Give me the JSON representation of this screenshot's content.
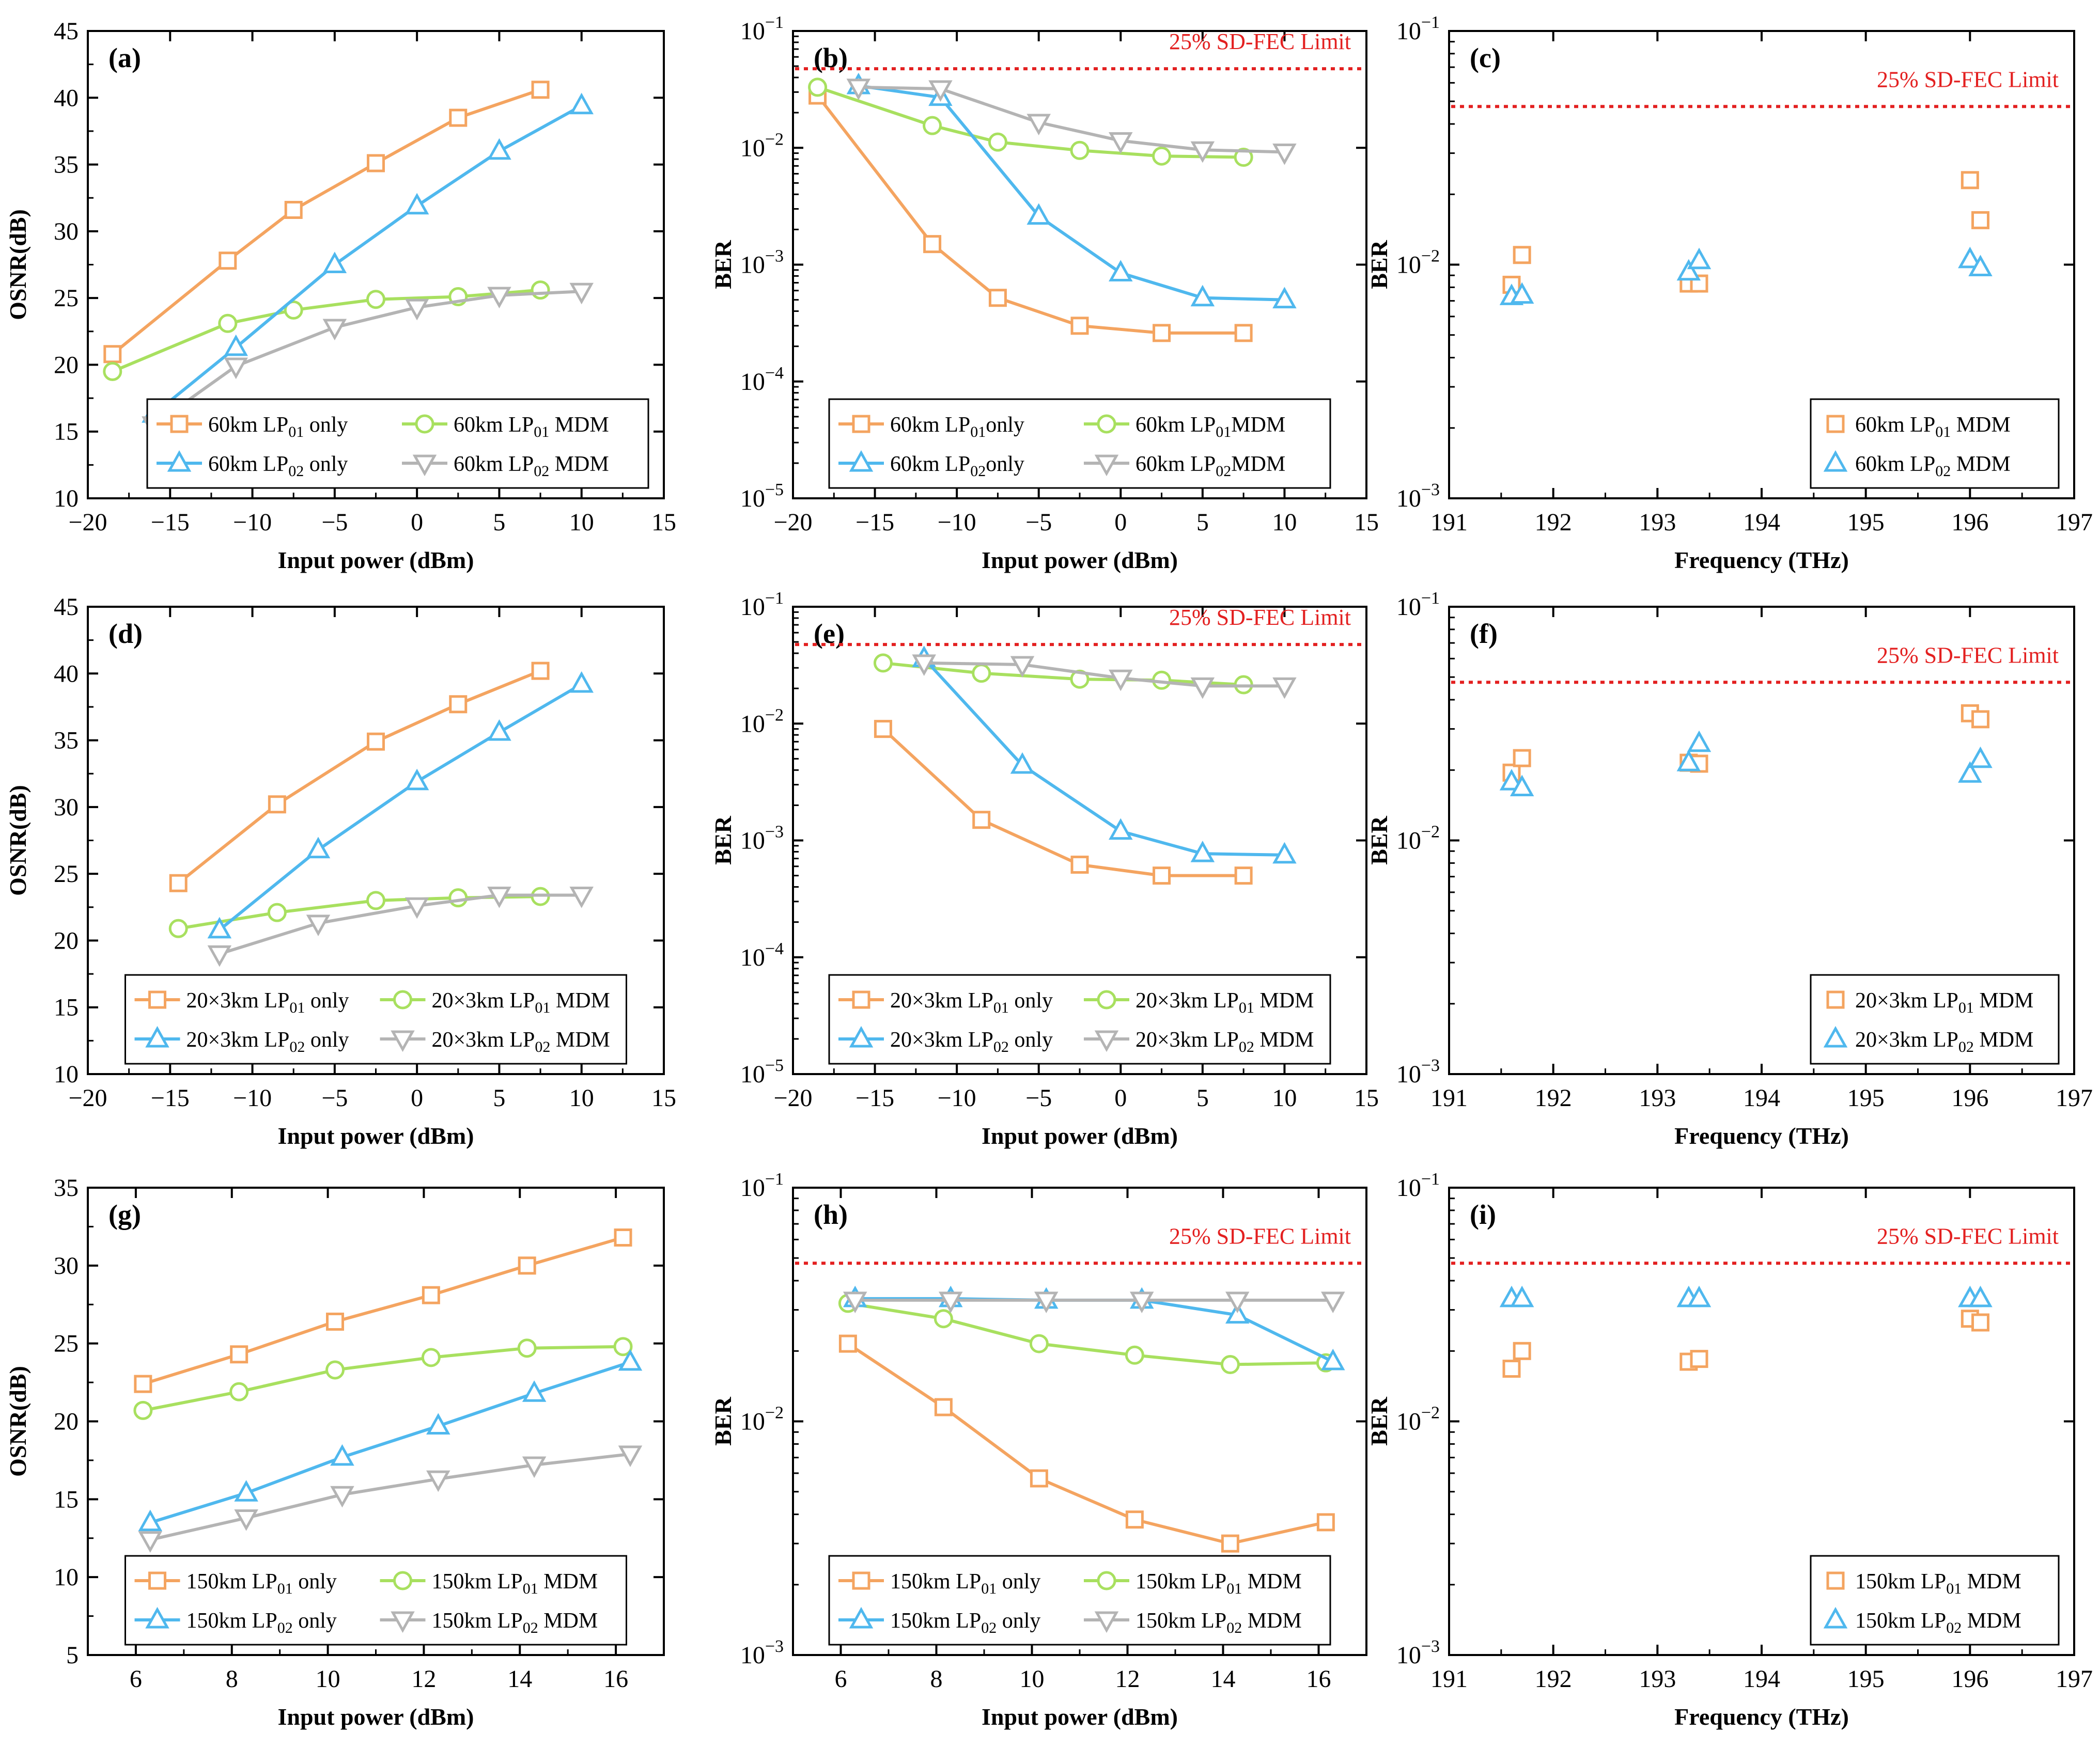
{
  "colors": {
    "lp01_only": "#f4a460",
    "lp01_mdm": "#a8e05f",
    "lp02_only": "#4fb8ee",
    "lp02_mdm": "#b4b4b4",
    "fec": "#e32020",
    "axis": "#000000"
  },
  "chart_data": [
    {
      "id": "a",
      "type": "line",
      "panel_label": "(a)",
      "xlabel": "Input power (dBm)",
      "ylabel": "OSNR(dB)",
      "yscale": "linear",
      "xlim": [
        -20,
        15
      ],
      "ylim": [
        10,
        45
      ],
      "xticks": [
        -20,
        -15,
        -10,
        -5,
        0,
        5,
        10,
        15
      ],
      "yticks": [
        10,
        15,
        20,
        25,
        30,
        35,
        40,
        45
      ],
      "legend_position": "bottom-right",
      "legend_cols": 2,
      "series": [
        {
          "name": "60km LP01 only",
          "sub": "01",
          "pre": "60km LP",
          "post": " only",
          "style": "lp01_only",
          "x": [
            -18.5,
            -11.5,
            -7.5,
            -2.5,
            2.5,
            7.5
          ],
          "y": [
            20.8,
            27.8,
            31.6,
            35.1,
            38.5,
            40.6
          ]
        },
        {
          "name": "60km LP01 MDM",
          "sub": "01",
          "pre": "60km LP",
          "post": " MDM",
          "style": "lp01_mdm",
          "x": [
            -18.5,
            -11.5,
            -7.5,
            -2.5,
            2.5,
            7.5
          ],
          "y": [
            19.5,
            23.1,
            24.1,
            24.9,
            25.1,
            25.6
          ]
        },
        {
          "name": "60km LP02 only",
          "sub": "02",
          "pre": "60km LP",
          "post": " only",
          "style": "lp02_only",
          "x": [
            -16,
            -11,
            -5,
            0,
            5,
            10
          ],
          "y": [
            16.3,
            21.3,
            27.5,
            31.9,
            36.0,
            39.4
          ]
        },
        {
          "name": "60km LP02 MDM",
          "sub": "02",
          "pre": "60km LP",
          "post": " MDM",
          "style": "lp02_mdm",
          "x": [
            -16,
            -11,
            -5,
            0,
            5,
            10
          ],
          "y": [
            15.5,
            19.9,
            22.8,
            24.3,
            25.2,
            25.5
          ]
        }
      ]
    },
    {
      "id": "b",
      "type": "line",
      "panel_label": "(b)",
      "xlabel": "Input power (dBm)",
      "ylabel": "BER",
      "yscale": "log",
      "xlim": [
        -20,
        15
      ],
      "ylim_exp": [
        -5,
        -1
      ],
      "xticks": [
        -20,
        -15,
        -10,
        -5,
        0,
        5,
        10,
        15
      ],
      "yticks_exp": [
        -5,
        -4,
        -3,
        -2,
        -1
      ],
      "fec_limit": 0.0475,
      "fec_label": "25% SD-FEC Limit",
      "legend_position": "bottom-center",
      "legend_cols": 2,
      "series": [
        {
          "name": "60km LP01only",
          "sub": "01",
          "pre": "60km LP",
          "post": "only",
          "style": "lp01_only",
          "x": [
            -18.5,
            -11.5,
            -7.5,
            -2.5,
            2.5,
            7.5
          ],
          "y": [
            0.028,
            0.0015,
            0.00052,
            0.0003,
            0.00026,
            0.00026
          ]
        },
        {
          "name": "60km LP01MDM",
          "sub": "01",
          "pre": "60km LP",
          "post": "MDM",
          "style": "lp01_mdm",
          "x": [
            -18.5,
            -11.5,
            -7.5,
            -2.5,
            2.5,
            7.5
          ],
          "y": [
            0.033,
            0.0155,
            0.0112,
            0.0095,
            0.0085,
            0.0083
          ]
        },
        {
          "name": "60km LP02only",
          "sub": "02",
          "pre": "60km LP",
          "post": "only",
          "style": "lp02_only",
          "x": [
            -16,
            -11,
            -5,
            0,
            5,
            10
          ],
          "y": [
            0.034,
            0.027,
            0.0026,
            0.00085,
            0.00052,
            0.0005
          ]
        },
        {
          "name": "60km LP02MDM",
          "sub": "02",
          "pre": "60km LP",
          "post": "MDM",
          "style": "lp02_mdm",
          "x": [
            -16,
            -11,
            -5,
            0,
            5,
            10
          ],
          "y": [
            0.033,
            0.032,
            0.0165,
            0.0115,
            0.0096,
            0.0092
          ]
        }
      ]
    },
    {
      "id": "c",
      "type": "scatter",
      "panel_label": "(c)",
      "xlabel": "Frequency (THz)",
      "ylabel": "BER",
      "yscale": "log",
      "xlim": [
        191,
        197
      ],
      "ylim_exp": [
        -3,
        -1
      ],
      "xticks": [
        191,
        192,
        193,
        194,
        195,
        196,
        197
      ],
      "yticks_exp": [
        -3,
        -2,
        -1
      ],
      "fec_limit": 0.0475,
      "fec_label": "25% SD-FEC Limit",
      "legend_position": "bottom-right",
      "legend_cols": 1,
      "series": [
        {
          "name": "60km LP01 MDM",
          "sub": "01",
          "pre": "60km LP",
          "post": " MDM",
          "style": "lp01_mdm_scatter",
          "x": [
            191.6,
            191.7,
            193.3,
            193.4,
            196.0,
            196.1
          ],
          "y": [
            0.0082,
            0.011,
            0.0083,
            0.0083,
            0.023,
            0.0155
          ]
        },
        {
          "name": "60km LP02 MDM",
          "sub": "02",
          "pre": "60km LP",
          "post": " MDM",
          "style": "lp02_mdm_scatter",
          "x": [
            191.6,
            191.7,
            193.3,
            193.4,
            196.0,
            196.1
          ],
          "y": [
            0.0073,
            0.0074,
            0.0093,
            0.0104,
            0.0105,
            0.0097
          ]
        }
      ]
    },
    {
      "id": "d",
      "type": "line",
      "panel_label": "(d)",
      "xlabel": "Input power (dBm)",
      "ylabel": "OSNR(dB)",
      "yscale": "linear",
      "xlim": [
        -20,
        15
      ],
      "ylim": [
        10,
        45
      ],
      "xticks": [
        -20,
        -15,
        -10,
        -5,
        0,
        5,
        10,
        15
      ],
      "yticks": [
        10,
        15,
        20,
        25,
        30,
        35,
        40,
        45
      ],
      "legend_position": "bottom-center",
      "legend_cols": 2,
      "series": [
        {
          "name": "20×3km LP01 only",
          "sub": "01",
          "pre": "20×3km LP",
          "post": " only",
          "style": "lp01_only",
          "x": [
            -14.5,
            -8.5,
            -2.5,
            2.5,
            7.5
          ],
          "y": [
            24.3,
            30.2,
            34.9,
            37.7,
            40.2
          ]
        },
        {
          "name": "20×3km LP01 MDM",
          "sub": "01",
          "pre": "20×3km LP",
          "post": " MDM",
          "style": "lp01_mdm",
          "x": [
            -14.5,
            -8.5,
            -2.5,
            2.5,
            7.5
          ],
          "y": [
            20.9,
            22.1,
            23.0,
            23.2,
            23.3
          ]
        },
        {
          "name": "20×3km LP02 only",
          "sub": "02",
          "pre": "20×3km LP",
          "post": " only",
          "style": "lp02_only",
          "x": [
            -12,
            -6,
            0,
            5,
            10
          ],
          "y": [
            20.8,
            26.8,
            31.9,
            35.6,
            39.2
          ]
        },
        {
          "name": "20×3km LP02 MDM",
          "sub": "02",
          "pre": "20×3km LP",
          "post": " MDM",
          "style": "lp02_mdm",
          "x": [
            -12,
            -6,
            0,
            5,
            10
          ],
          "y": [
            19.0,
            21.3,
            22.6,
            23.4,
            23.4
          ]
        }
      ]
    },
    {
      "id": "e",
      "type": "line",
      "panel_label": "(e)",
      "xlabel": "Input power (dBm)",
      "ylabel": "BER",
      "yscale": "log",
      "xlim": [
        -20,
        15
      ],
      "ylim_exp": [
        -5,
        -1
      ],
      "xticks": [
        -20,
        -15,
        -10,
        -5,
        0,
        5,
        10,
        15
      ],
      "yticks_exp": [
        -5,
        -4,
        -3,
        -2,
        -1
      ],
      "fec_limit": 0.0475,
      "fec_label": "25% SD-FEC Limit",
      "legend_position": "bottom-center",
      "legend_cols": 2,
      "series": [
        {
          "name": "20×3km LP01 only",
          "sub": "01",
          "pre": "20×3km LP",
          "post": " only",
          "style": "lp01_only",
          "x": [
            -14.5,
            -8.5,
            -2.5,
            2.5,
            7.5
          ],
          "y": [
            0.009,
            0.0015,
            0.00062,
            0.0005,
            0.0005
          ]
        },
        {
          "name": "20×3km LP01 MDM",
          "sub": "01",
          "pre": "20×3km LP",
          "post": " MDM",
          "style": "lp01_mdm",
          "x": [
            -14.5,
            -8.5,
            -2.5,
            2.5,
            7.5
          ],
          "y": [
            0.033,
            0.027,
            0.024,
            0.0235,
            0.0215
          ]
        },
        {
          "name": "20×3km LP02 only",
          "sub": "02",
          "pre": "20×3km LP",
          "post": " only",
          "style": "lp02_only",
          "x": [
            -12,
            -6,
            0,
            5,
            10
          ],
          "y": [
            0.036,
            0.0044,
            0.0012,
            0.00077,
            0.00075
          ]
        },
        {
          "name": "20×3km LP02 MDM",
          "sub": "02",
          "pre": "20×3km LP",
          "post": " MDM",
          "style": "lp02_mdm",
          "x": [
            -12,
            -6,
            0,
            5,
            10
          ],
          "y": [
            0.033,
            0.032,
            0.0245,
            0.021,
            0.021
          ]
        }
      ]
    },
    {
      "id": "f",
      "type": "scatter",
      "panel_label": "(f)",
      "xlabel": "Frequency (THz)",
      "ylabel": "BER",
      "yscale": "log",
      "xlim": [
        191,
        197
      ],
      "ylim_exp": [
        -3,
        -1
      ],
      "xticks": [
        191,
        192,
        193,
        194,
        195,
        196,
        197
      ],
      "yticks_exp": [
        -3,
        -2,
        -1
      ],
      "fec_limit": 0.0475,
      "fec_label": "25% SD-FEC Limit",
      "legend_position": "bottom-right",
      "legend_cols": 1,
      "series": [
        {
          "name": "20×3km LP01 MDM",
          "sub": "01",
          "pre": "20×3km LP",
          "post": " MDM",
          "style": "lp01_mdm_scatter",
          "x": [
            191.6,
            191.7,
            193.3,
            193.4,
            196.0,
            196.1
          ],
          "y": [
            0.0195,
            0.0225,
            0.0215,
            0.0213,
            0.035,
            0.033
          ]
        },
        {
          "name": "20×3km LP02 MDM",
          "sub": "02",
          "pre": "20×3km LP",
          "post": " MDM",
          "style": "lp02_mdm_scatter",
          "x": [
            191.6,
            191.7,
            193.3,
            193.4,
            196.0,
            196.1
          ],
          "y": [
            0.0178,
            0.0168,
            0.0215,
            0.026,
            0.0192,
            0.0222
          ]
        }
      ]
    },
    {
      "id": "g",
      "type": "line",
      "panel_label": "(g)",
      "xlabel": "Input power (dBm)",
      "ylabel": "OSNR(dB)",
      "yscale": "linear",
      "xlim": [
        5,
        17
      ],
      "ylim": [
        5,
        35
      ],
      "xticks": [
        6,
        8,
        10,
        12,
        14,
        16
      ],
      "yticks": [
        5,
        10,
        15,
        20,
        25,
        30,
        35
      ],
      "legend_position": "bottom-center",
      "legend_cols": 2,
      "series": [
        {
          "name": "150km LP01 only",
          "sub": "01",
          "pre": "150km LP",
          "post": " only",
          "style": "lp01_only",
          "x": [
            6.15,
            8.15,
            10.15,
            12.15,
            14.15,
            16.15
          ],
          "y": [
            22.4,
            24.3,
            26.4,
            28.1,
            30.0,
            31.8
          ]
        },
        {
          "name": "150km LP01 MDM",
          "sub": "01",
          "pre": "150km LP",
          "post": " MDM",
          "style": "lp01_mdm",
          "x": [
            6.15,
            8.15,
            10.15,
            12.15,
            14.15,
            16.15
          ],
          "y": [
            20.7,
            21.9,
            23.3,
            24.1,
            24.7,
            24.8
          ]
        },
        {
          "name": "150km LP02 only",
          "sub": "02",
          "pre": "150km LP",
          "post": " only",
          "style": "lp02_only",
          "x": [
            6.3,
            8.3,
            10.3,
            12.3,
            14.3,
            16.3
          ],
          "y": [
            13.5,
            15.4,
            17.7,
            19.7,
            21.8,
            23.8
          ]
        },
        {
          "name": "150km LP02 MDM",
          "sub": "02",
          "pre": "150km LP",
          "post": " MDM",
          "style": "lp02_mdm",
          "x": [
            6.3,
            8.3,
            10.3,
            12.3,
            14.3,
            16.3
          ],
          "y": [
            12.4,
            13.8,
            15.3,
            16.3,
            17.2,
            17.9
          ]
        }
      ]
    },
    {
      "id": "h",
      "type": "line",
      "panel_label": "(h)",
      "xlabel": "Input power (dBm)",
      "ylabel": "BER",
      "yscale": "log",
      "xlim": [
        5,
        17
      ],
      "ylim_exp": [
        -3,
        -1
      ],
      "xticks": [
        6,
        8,
        10,
        12,
        14,
        16
      ],
      "yticks_exp": [
        -3,
        -2,
        -1
      ],
      "fec_limit": 0.0475,
      "fec_label": "25% SD-FEC Limit",
      "legend_position": "bottom-center",
      "legend_cols": 2,
      "series": [
        {
          "name": "150km LP01 only",
          "sub": "01",
          "pre": "150km LP",
          "post": " only",
          "style": "lp01_only",
          "x": [
            6.15,
            8.15,
            10.15,
            12.15,
            14.15,
            16.15
          ],
          "y": [
            0.0215,
            0.0115,
            0.0057,
            0.0038,
            0.003,
            0.0037
          ]
        },
        {
          "name": "150km LP01 MDM",
          "sub": "01",
          "pre": "150km LP",
          "post": " MDM",
          "style": "lp01_mdm",
          "x": [
            6.15,
            8.15,
            10.15,
            12.15,
            14.15,
            16.15
          ],
          "y": [
            0.032,
            0.0275,
            0.0215,
            0.0192,
            0.0175,
            0.0178
          ]
        },
        {
          "name": "150km LP02 only",
          "sub": "02",
          "pre": "150km LP",
          "post": " only",
          "style": "lp02_only",
          "x": [
            6.3,
            8.3,
            10.3,
            12.3,
            14.3,
            16.3
          ],
          "y": [
            0.0335,
            0.0335,
            0.033,
            0.033,
            0.0285,
            0.018
          ]
        },
        {
          "name": "150km LP02 MDM",
          "sub": "02",
          "pre": "150km LP",
          "post": " MDM",
          "style": "lp02_mdm",
          "x": [
            6.3,
            8.3,
            10.3,
            12.3,
            14.3,
            16.3
          ],
          "y": [
            0.033,
            0.033,
            0.033,
            0.033,
            0.033,
            0.033
          ]
        }
      ]
    },
    {
      "id": "i",
      "type": "scatter",
      "panel_label": "(i)",
      "xlabel": "Frequency (THz)",
      "ylabel": "BER",
      "yscale": "log",
      "xlim": [
        191,
        197
      ],
      "ylim_exp": [
        -3,
        -1
      ],
      "xticks": [
        191,
        192,
        193,
        194,
        195,
        196,
        197
      ],
      "yticks_exp": [
        -3,
        -2,
        -1
      ],
      "fec_limit": 0.0475,
      "fec_label": "25% SD-FEC Limit",
      "legend_position": "bottom-right",
      "legend_cols": 1,
      "series": [
        {
          "name": "150km LP01 MDM",
          "sub": "01",
          "pre": "150km LP",
          "post": " MDM",
          "style": "lp01_mdm_scatter",
          "x": [
            191.6,
            191.7,
            193.3,
            193.4,
            196.0,
            196.1
          ],
          "y": [
            0.0168,
            0.02,
            0.018,
            0.0185,
            0.0275,
            0.0265
          ]
        },
        {
          "name": "150km LP02 MDM",
          "sub": "02",
          "pre": "150km LP",
          "post": " MDM",
          "style": "lp02_mdm_scatter",
          "x": [
            191.6,
            191.7,
            193.3,
            193.4,
            196.0,
            196.1
          ],
          "y": [
            0.0335,
            0.0335,
            0.0335,
            0.0335,
            0.0335,
            0.0335
          ]
        }
      ]
    }
  ]
}
